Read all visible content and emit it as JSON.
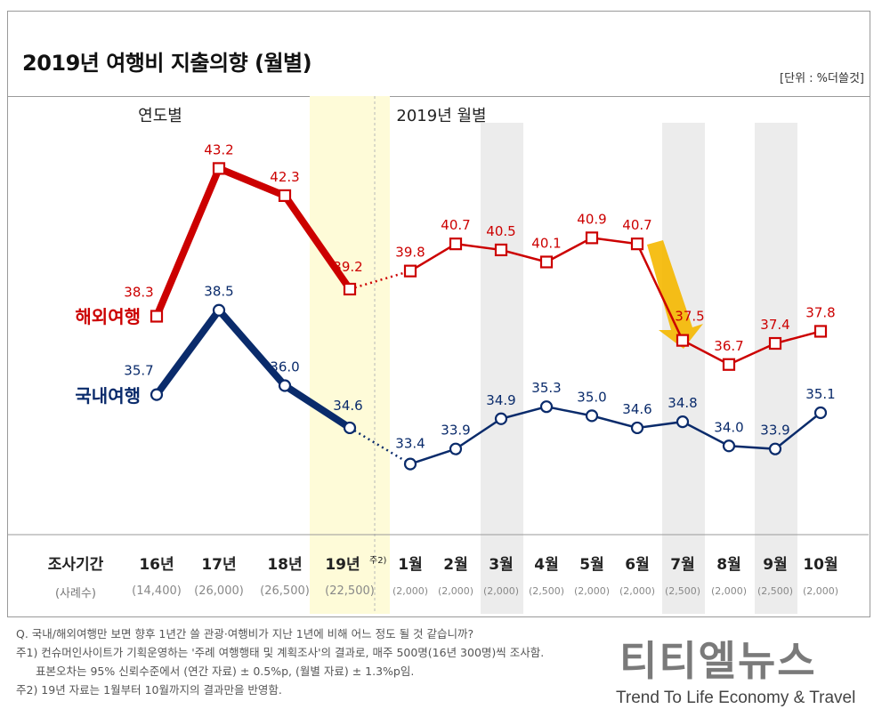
{
  "title": "2019년 여행비 지출의향 (월별)",
  "unit_note": "[단위 : %더쓸것]",
  "section_labels": {
    "yearly": "연도별",
    "monthly": "2019년 월별"
  },
  "row_labels": {
    "period": "조사기간",
    "samples": "(사례수)"
  },
  "colors": {
    "overseas": "#cc0000",
    "domestic": "#0a2b6b",
    "highlight_yellow": "#fefbd8",
    "shade_gray": "#ececec",
    "arrow": "#f5b800"
  },
  "chart_data": {
    "type": "line",
    "title": "2019년 여행비 지출의향 (월별)",
    "unit": "%더쓸것",
    "categories": [
      "16년",
      "17년",
      "18년",
      "19년",
      "1월",
      "2월",
      "3월",
      "4월",
      "5월",
      "6월",
      "7월",
      "8월",
      "9월",
      "10월"
    ],
    "category_notes": [
      "",
      "",
      "",
      "주2)",
      "",
      "",
      "",
      "",
      "",
      "",
      "",
      "",
      "",
      ""
    ],
    "sample_sizes": [
      "(14,400)",
      "(26,000)",
      "(26,500)",
      "(22,500)",
      "(2,000)",
      "(2,000)",
      "(2,000)",
      "(2,500)",
      "(2,000)",
      "(2,000)",
      "(2,500)",
      "(2,000)",
      "(2,500)",
      "(2,000)"
    ],
    "series": [
      {
        "name": "해외여행",
        "values": [
          38.3,
          43.2,
          42.3,
          39.2,
          39.8,
          40.7,
          40.5,
          40.1,
          40.9,
          40.7,
          37.5,
          36.7,
          37.4,
          37.8
        ],
        "labels": [
          "38.3",
          "43.2",
          "42.3",
          "39.2",
          "39.8",
          "40.7",
          "40.5",
          "40.1",
          "40.9",
          "40.7",
          "37.5",
          "36.7",
          "37.4",
          "37.8"
        ]
      },
      {
        "name": "국내여행",
        "values": [
          35.7,
          38.5,
          36.0,
          34.6,
          33.4,
          33.9,
          34.9,
          35.3,
          35.0,
          34.6,
          34.8,
          34.0,
          33.9,
          35.1
        ],
        "labels": [
          "35.7",
          "38.5",
          "36.0",
          "34.6",
          "33.4",
          "33.9",
          "34.9",
          "35.3",
          "35.0",
          "34.6",
          "34.8",
          "34.0",
          "33.9",
          "35.1"
        ]
      }
    ],
    "shaded_categories": {
      "yellow": [
        "19년"
      ],
      "gray": [
        "3월",
        "7월",
        "9월"
      ]
    },
    "grid": false,
    "legend": "inline-left"
  },
  "notes": [
    "Q. 국내/해외여행만 보면 향후 1년간 쓸 관광·여행비가 지난 1년에 비해 어느 정도 될 것 같습니까?",
    "주1) 컨슈머인사이트가 기획운영하는 '주례 여행행태 및 계획조사'의 결과로, 매주 500명(16년 300명)씩 조사함.",
    "표본오차는 95% 신뢰수준에서 (연간 자료) ± 0.5%p, (월별 자료) ± 1.3%p임.",
    "주2) 19년 자료는 1월부터 10월까지의 결과만을 반영함."
  ],
  "watermark": {
    "brand": "티티엘뉴스",
    "tagline": "Trend To Life Economy & Travel"
  }
}
